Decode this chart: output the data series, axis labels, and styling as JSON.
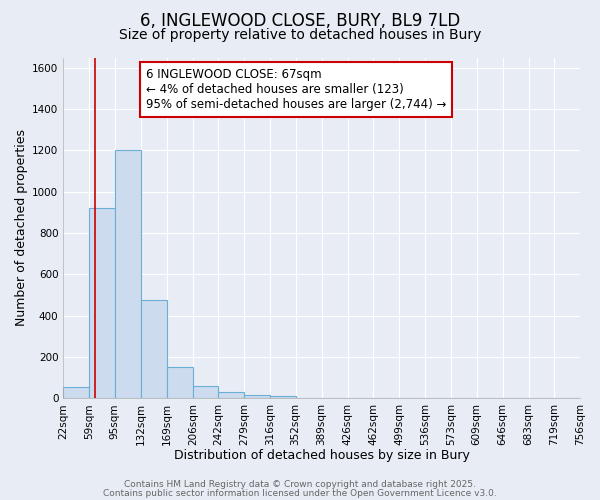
{
  "title_line1": "6, INGLEWOOD CLOSE, BURY, BL9 7LD",
  "title_line2": "Size of property relative to detached houses in Bury",
  "xlabel": "Distribution of detached houses by size in Bury",
  "ylabel": "Number of detached properties",
  "bin_edges": [
    22,
    59,
    95,
    132,
    169,
    206,
    242,
    279,
    316,
    352,
    389,
    426,
    462,
    499,
    536,
    573,
    609,
    646,
    683,
    719,
    756
  ],
  "bar_heights": [
    55,
    920,
    1200,
    475,
    150,
    60,
    30,
    15,
    10,
    0,
    0,
    0,
    0,
    0,
    0,
    0,
    0,
    0,
    0,
    0
  ],
  "bar_color": "#ccdcee",
  "bar_edge_color": "#6baed6",
  "red_line_x": 67,
  "annotation_line1": "6 INGLEWOOD CLOSE: 67sqm",
  "annotation_line2": "← 4% of detached houses are smaller (123)",
  "annotation_line3": "95% of semi-detached houses are larger (2,744) →",
  "annotation_box_color": "#ffffff",
  "annotation_box_edge": "#cc0000",
  "ylim": [
    0,
    1650
  ],
  "yticks": [
    0,
    200,
    400,
    600,
    800,
    1000,
    1200,
    1400,
    1600
  ],
  "fig_bg_color": "#e8edf5",
  "plot_bg_color": "#e8edf5",
  "grid_color": "#ffffff",
  "footer_line1": "Contains HM Land Registry data © Crown copyright and database right 2025.",
  "footer_line2": "Contains public sector information licensed under the Open Government Licence v3.0.",
  "title_fontsize": 12,
  "subtitle_fontsize": 10,
  "axis_label_fontsize": 9,
  "tick_fontsize": 7.5,
  "annotation_fontsize": 8.5,
  "footer_fontsize": 6.5
}
